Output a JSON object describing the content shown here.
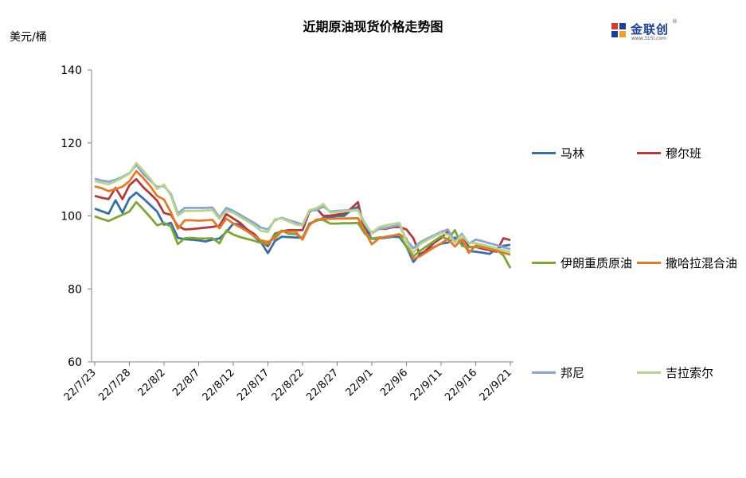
{
  "title": "近期原油现货价格走势图",
  "unit": "美元/桶",
  "logo": {
    "name": "金联创",
    "sub": "www.315i.com",
    "mark": "®"
  },
  "chart_data": {
    "type": "line",
    "title": "近期原油现货价格走势图",
    "ylabel": "美元/桶",
    "ylim": [
      60,
      140
    ],
    "yticks": [
      60,
      80,
      100,
      120,
      140
    ],
    "xtick_labels": [
      "22/7/23",
      "22/7/28",
      "22/8/2",
      "22/8/7",
      "22/8/12",
      "22/8/17",
      "22/8/22",
      "22/8/27",
      "22/9/1",
      "22/9/6",
      "22/9/11",
      "22/9/16",
      "22/9/21"
    ],
    "x": [
      0,
      1,
      2,
      3,
      4,
      5,
      6,
      7,
      8,
      9,
      10,
      11,
      12,
      13,
      14,
      15,
      16,
      17,
      18,
      19,
      20,
      21,
      22,
      23,
      24,
      25,
      26,
      27,
      28,
      29,
      30,
      31,
      32,
      33,
      34,
      35,
      36,
      37,
      38,
      39,
      40,
      41,
      42,
      43,
      44,
      45,
      46,
      47,
      48,
      49,
      50,
      51,
      52,
      53,
      54,
      55,
      56,
      57,
      58,
      59,
      60
    ],
    "grid": false,
    "legend": "right",
    "series": [
      {
        "name": "马林",
        "color": "#3a6ea5",
        "values": [
          102.0,
          101.3,
          100.6,
          104.3,
          100.9,
          104.8,
          106.4,
          104.8,
          103.0,
          101.2,
          97.6,
          98.1,
          94.0,
          93.6,
          93.5,
          93.3,
          93.0,
          93.5,
          93.8,
          95.6,
          97.9,
          97.6,
          96.2,
          94.4,
          92.8,
          89.8,
          93.1,
          94.3,
          94.2,
          94.1,
          94.0,
          97.9,
          98.7,
          99.4,
          99.6,
          100.0,
          100.0,
          101.6,
          102.5,
          97.1,
          93.7,
          93.8,
          94.0,
          94.3,
          94.2,
          91.6,
          87.4,
          89.6,
          90.6,
          91.5,
          92.4,
          92.7,
          94.1,
          92.6,
          90.4,
          90.2,
          89.9,
          89.6,
          91.0,
          91.8,
          92.1
        ]
      },
      {
        "name": "穆尔班",
        "color": "#b03c3c",
        "values": [
          105.5,
          105.0,
          104.6,
          107.7,
          104.6,
          108.4,
          110.1,
          107.9,
          106.1,
          104.2,
          100.8,
          100.3,
          97.2,
          96.3,
          96.4,
          96.6,
          96.8,
          97.0,
          97.3,
          100.5,
          99.3,
          98.1,
          96.3,
          95.1,
          93.1,
          91.7,
          95.1,
          95.8,
          96.1,
          96.1,
          96.1,
          101.2,
          102.1,
          100.0,
          100.1,
          100.4,
          100.6,
          102.0,
          103.8,
          95.5,
          95.5,
          96.4,
          96.5,
          96.9,
          97.0,
          96.3,
          93.9,
          89.1,
          90.9,
          92.6,
          93.9,
          95.8,
          93.0,
          94.9,
          91.5,
          91.5,
          91.0,
          90.6,
          90.2,
          93.9,
          93.4
        ]
      },
      {
        "name": "伊朗重质原油",
        "color": "#7fa53a",
        "values": [
          99.9,
          99.2,
          98.6,
          99.5,
          100.3,
          101.2,
          103.8,
          101.8,
          99.7,
          97.4,
          98.1,
          97.1,
          92.3,
          93.9,
          94.0,
          93.8,
          93.8,
          93.9,
          92.5,
          96.0,
          94.9,
          94.2,
          93.7,
          93.2,
          92.6,
          92.3,
          94.7,
          96.0,
          95.1,
          95.0,
          94.0,
          97.6,
          98.8,
          98.9,
          97.9,
          97.9,
          98.0,
          98.0,
          98.1,
          95.1,
          93.8,
          94.1,
          94.2,
          94.6,
          95.0,
          91.5,
          88.9,
          90.5,
          91.8,
          93.1,
          94.4,
          93.6,
          96.1,
          91.8,
          91.4,
          91.5,
          91.4,
          91.0,
          90.7,
          89.2,
          85.7
        ]
      },
      {
        "name": "撒哈拉混合油",
        "color": "#e07b2e",
        "values": [
          108.1,
          107.6,
          106.8,
          107.4,
          108.0,
          109.5,
          112.3,
          110.4,
          108.2,
          105.5,
          104.5,
          101.0,
          96.5,
          98.8,
          98.8,
          98.7,
          98.8,
          98.9,
          96.6,
          99.3,
          97.9,
          96.9,
          95.8,
          94.5,
          93.3,
          92.9,
          93.8,
          95.8,
          95.7,
          95.7,
          93.5,
          97.5,
          99.0,
          99.2,
          99.2,
          99.3,
          99.3,
          99.3,
          99.4,
          95.8,
          92.2,
          93.8,
          94.3,
          94.6,
          94.9,
          93.8,
          88.2,
          89.0,
          90.2,
          91.4,
          92.5,
          93.7,
          91.6,
          93.6,
          89.9,
          91.9,
          91.5,
          90.9,
          90.4,
          89.9,
          89.4
        ]
      },
      {
        "name": "邦尼",
        "color": "#8aa6cf",
        "values": [
          110.2,
          109.7,
          109.4,
          109.9,
          110.7,
          111.7,
          114.0,
          111.5,
          109.7,
          107.9,
          108.2,
          106.0,
          100.7,
          102.2,
          102.2,
          102.2,
          102.2,
          102.3,
          99.6,
          102.2,
          101.4,
          100.3,
          99.2,
          98.1,
          96.8,
          96.3,
          98.8,
          99.5,
          98.8,
          98.3,
          97.6,
          101.5,
          101.6,
          102.6,
          101.2,
          101.4,
          101.5,
          101.6,
          101.7,
          98.0,
          95.2,
          96.4,
          96.7,
          97.1,
          97.5,
          93.4,
          91.2,
          92.8,
          93.8,
          94.7,
          95.6,
          96.3,
          92.8,
          95.1,
          92.4,
          93.5,
          93.1,
          92.5,
          92.0,
          91.4,
          90.9
        ]
      },
      {
        "name": "吉拉索尔",
        "color": "#b7d38e",
        "values": [
          109.5,
          109.1,
          108.7,
          109.5,
          110.5,
          111.6,
          114.5,
          112.4,
          110.2,
          107.4,
          108.6,
          105.5,
          100.1,
          101.4,
          101.4,
          101.4,
          101.5,
          101.6,
          99.2,
          101.4,
          100.9,
          99.7,
          98.6,
          97.4,
          95.9,
          95.6,
          99.1,
          99.3,
          98.5,
          97.7,
          97.4,
          101.6,
          102.1,
          103.3,
          100.9,
          101.1,
          101.3,
          101.4,
          101.6,
          97.8,
          95.3,
          96.9,
          97.4,
          97.8,
          98.1,
          93.0,
          89.9,
          92.3,
          93.4,
          94.4,
          95.3,
          94.9,
          92.7,
          94.6,
          92.7,
          92.5,
          92.1,
          91.6,
          91.1,
          90.6,
          90.1
        ]
      }
    ]
  }
}
